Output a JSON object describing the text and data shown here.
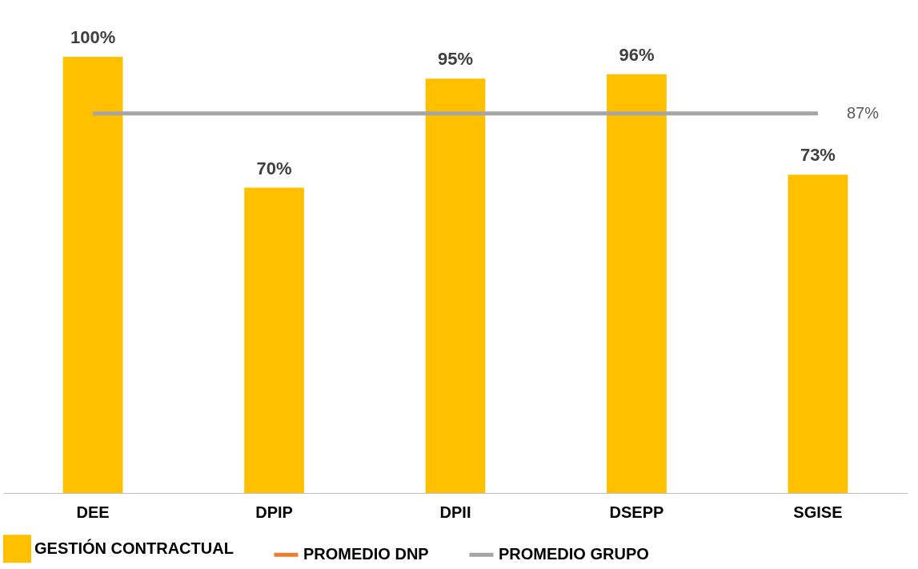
{
  "chart_data": {
    "type": "bar",
    "categories": [
      "DEE",
      "DPIP",
      "DPII",
      "DSEPP",
      "SGISE"
    ],
    "series": [
      {
        "name": "GESTIÓN CONTRACTUAL",
        "color": "#ffc000",
        "values": [
          100,
          70,
          95,
          96,
          73
        ],
        "value_labels": [
          "100%",
          "70%",
          "95%",
          "96%",
          "73%"
        ]
      },
      {
        "name": "PROMEDIO DNP",
        "type": "line",
        "color": "#ed7d31",
        "values": [
          null,
          null,
          null,
          null,
          null
        ]
      },
      {
        "name": "PROMEDIO GRUPO",
        "type": "line",
        "color": "#a5a5a5",
        "values": [
          87,
          87,
          87,
          87,
          87
        ],
        "value_labels": [
          null,
          null,
          null,
          null,
          "87%"
        ]
      }
    ],
    "legend": "bottom",
    "grid": false
  }
}
